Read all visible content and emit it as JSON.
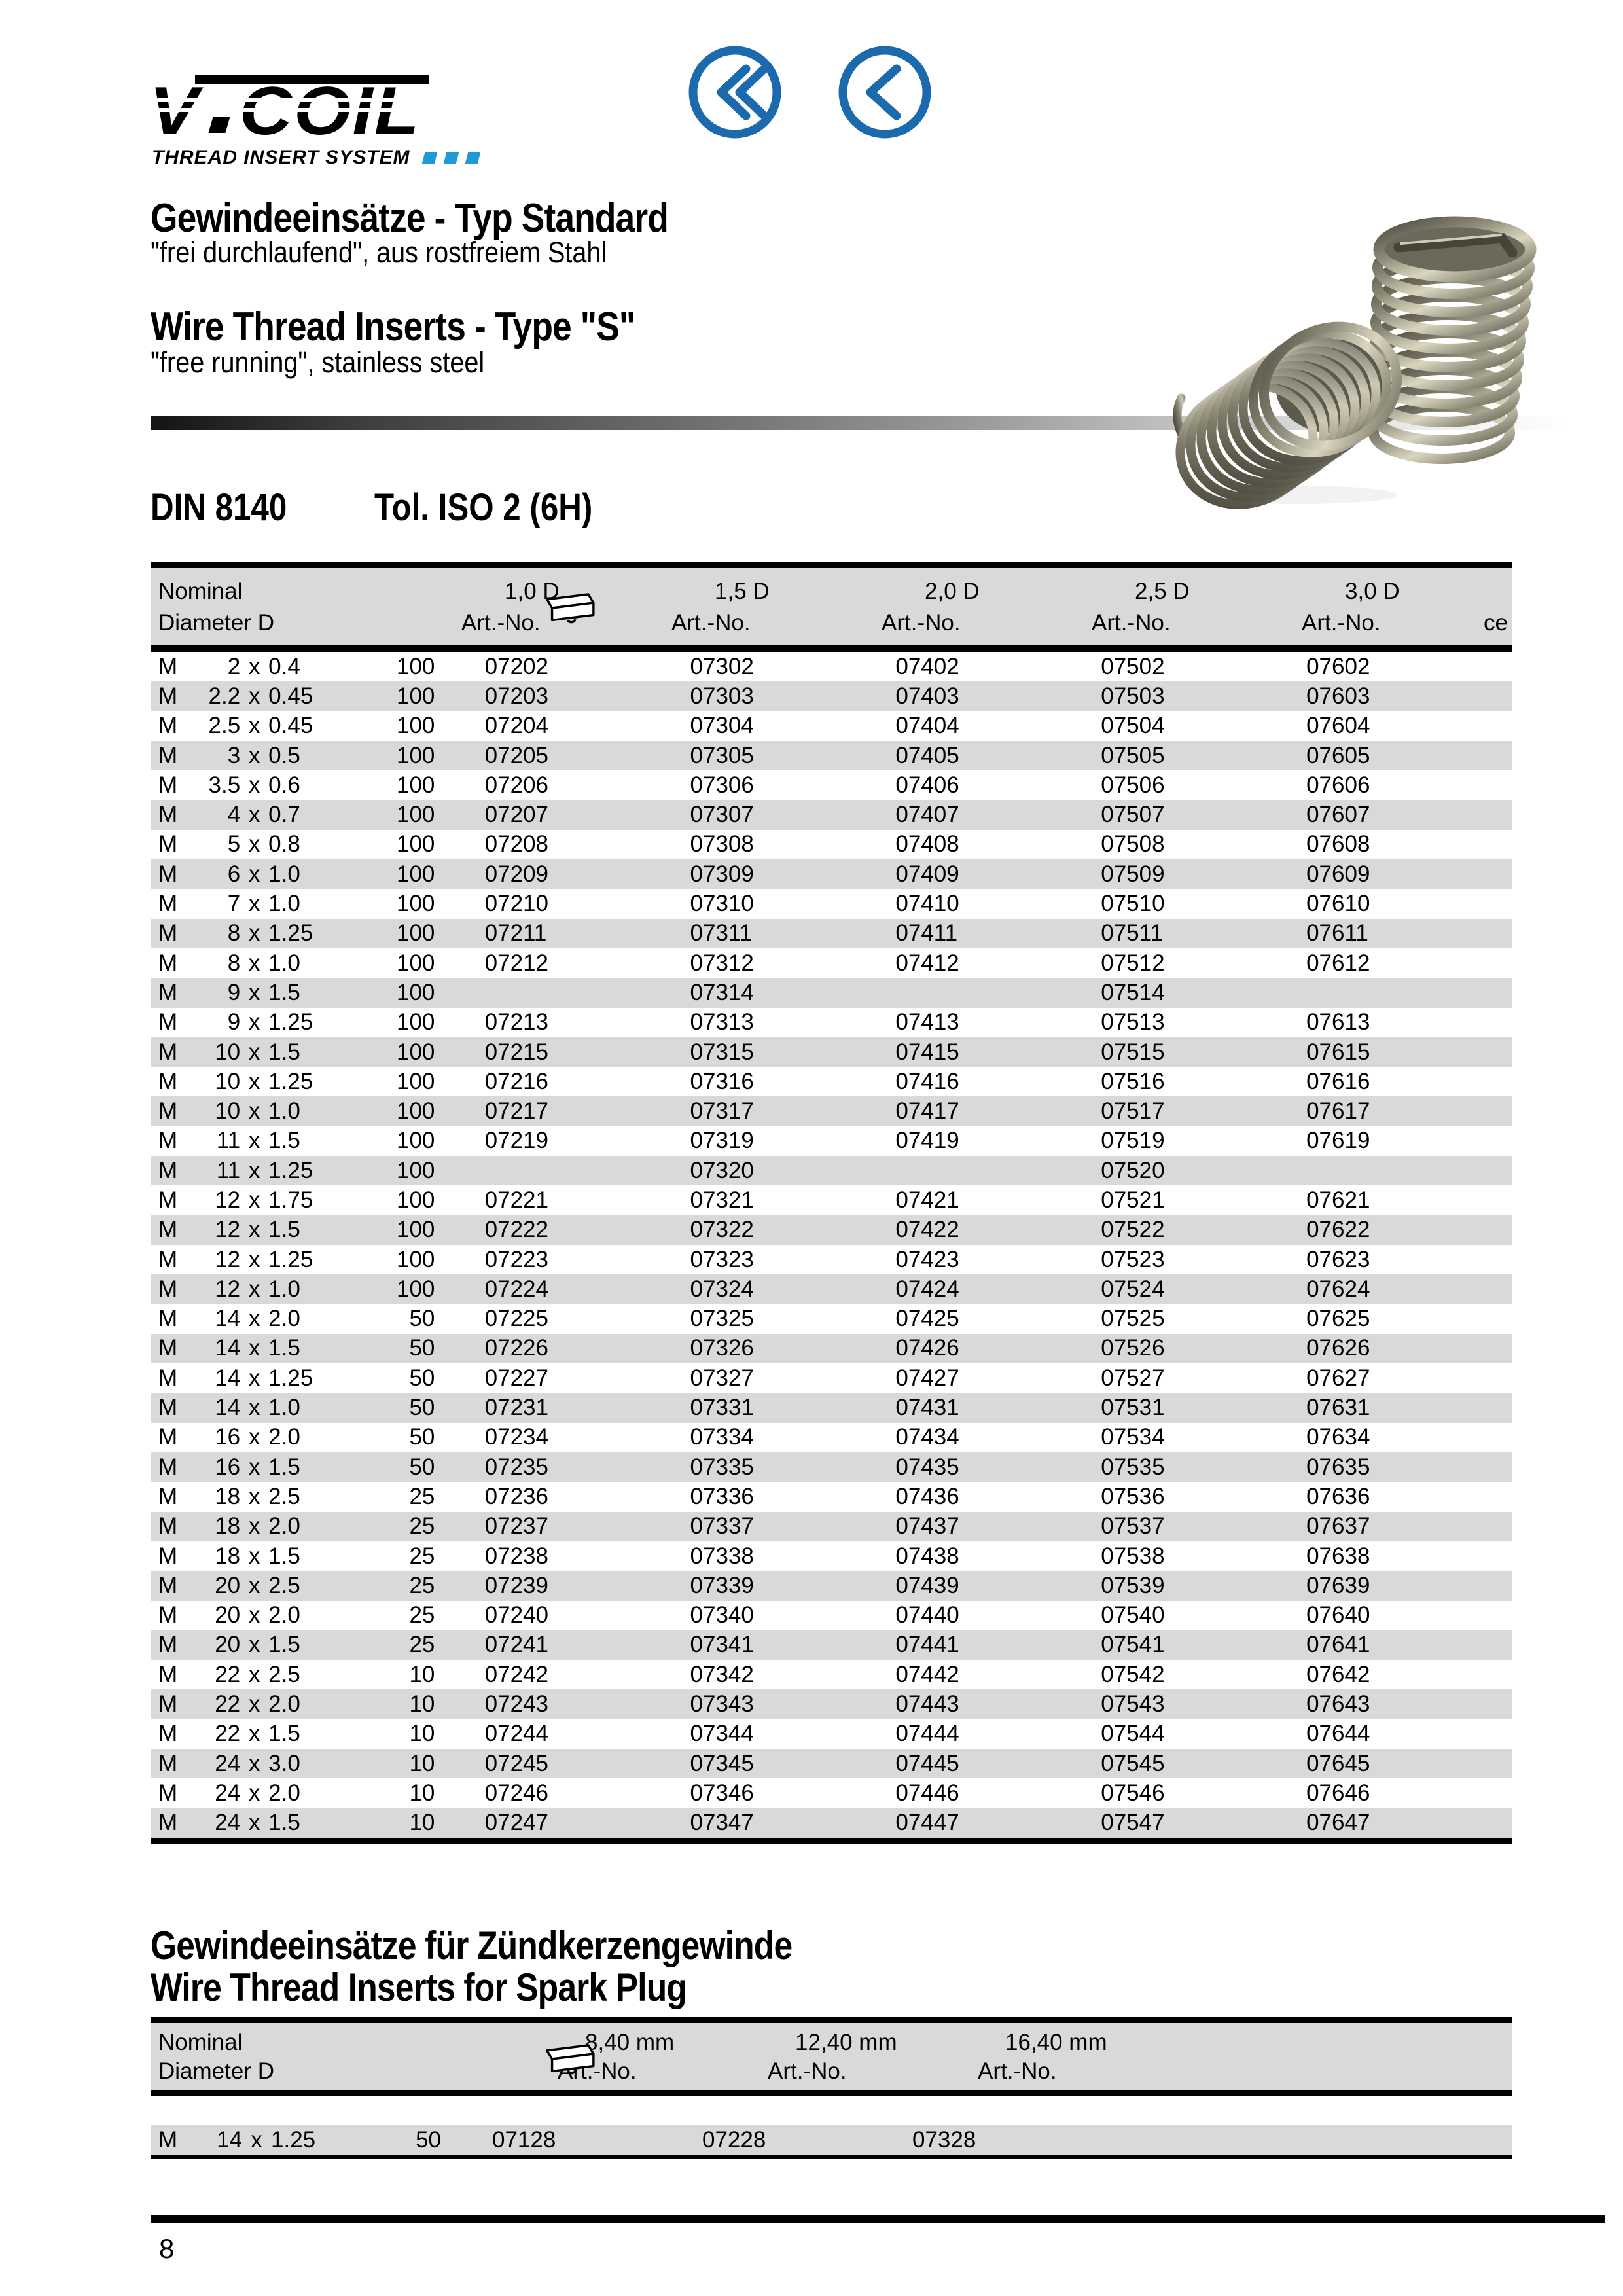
{
  "logo": {
    "brand_v": "V",
    "brand_rest": "COIL",
    "tagline": "THREAD INSERT SYSTEM",
    "accent_blue": "#1e9ad6"
  },
  "nav": {
    "first_page_icon": "chevrons-left-circle",
    "prev_page_icon": "chevron-left-circle",
    "color": "#1a6aad"
  },
  "titles": {
    "de_title": "Gewindeeinsätze - Typ Standard",
    "de_subtitle": "\"frei durchlaufend\", aus rostfreiem Stahl",
    "en_title": "Wire Thread Inserts - Type \"S\"",
    "en_subtitle": "\"free running\", stainless steel"
  },
  "product_image": {
    "description": "two stainless steel wire thread insert coils"
  },
  "din_section": {
    "din": "DIN 8140",
    "tolerance": "Tol. ISO 2 (6H)"
  },
  "standard_table": {
    "header": {
      "nominal": "Nominal",
      "diameter": "Diameter D",
      "pack_icon": "package-icon",
      "art_no": "Art.-No.",
      "sizes": [
        "1,0 D",
        "1,5 D",
        "2,0 D",
        "2,5 D",
        "3,0 D"
      ],
      "right_partial": "ce"
    },
    "m_prefix": "M",
    "x_sep": "x",
    "rows": [
      {
        "d": "2",
        "p": "0.4",
        "qty": "100",
        "arts": [
          "07202",
          "07302",
          "07402",
          "07502",
          "07602"
        ]
      },
      {
        "d": "2.2",
        "p": "0.45",
        "qty": "100",
        "arts": [
          "07203",
          "07303",
          "07403",
          "07503",
          "07603"
        ]
      },
      {
        "d": "2.5",
        "p": "0.45",
        "qty": "100",
        "arts": [
          "07204",
          "07304",
          "07404",
          "07504",
          "07604"
        ]
      },
      {
        "d": "3",
        "p": "0.5",
        "qty": "100",
        "arts": [
          "07205",
          "07305",
          "07405",
          "07505",
          "07605"
        ]
      },
      {
        "d": "3.5",
        "p": "0.6",
        "qty": "100",
        "arts": [
          "07206",
          "07306",
          "07406",
          "07506",
          "07606"
        ]
      },
      {
        "d": "4",
        "p": "0.7",
        "qty": "100",
        "arts": [
          "07207",
          "07307",
          "07407",
          "07507",
          "07607"
        ]
      },
      {
        "d": "5",
        "p": "0.8",
        "qty": "100",
        "arts": [
          "07208",
          "07308",
          "07408",
          "07508",
          "07608"
        ]
      },
      {
        "d": "6",
        "p": "1.0",
        "qty": "100",
        "arts": [
          "07209",
          "07309",
          "07409",
          "07509",
          "07609"
        ]
      },
      {
        "d": "7",
        "p": "1.0",
        "qty": "100",
        "arts": [
          "07210",
          "07310",
          "07410",
          "07510",
          "07610"
        ]
      },
      {
        "d": "8",
        "p": "1.25",
        "qty": "100",
        "arts": [
          "07211",
          "07311",
          "07411",
          "07511",
          "07611"
        ]
      },
      {
        "d": "8",
        "p": "1.0",
        "qty": "100",
        "arts": [
          "07212",
          "07312",
          "07412",
          "07512",
          "07612"
        ]
      },
      {
        "d": "9",
        "p": "1.5",
        "qty": "100",
        "arts": [
          "",
          "07314",
          "",
          "07514",
          ""
        ]
      },
      {
        "d": "9",
        "p": "1.25",
        "qty": "100",
        "arts": [
          "07213",
          "07313",
          "07413",
          "07513",
          "07613"
        ]
      },
      {
        "d": "10",
        "p": "1.5",
        "qty": "100",
        "arts": [
          "07215",
          "07315",
          "07415",
          "07515",
          "07615"
        ]
      },
      {
        "d": "10",
        "p": "1.25",
        "qty": "100",
        "arts": [
          "07216",
          "07316",
          "07416",
          "07516",
          "07616"
        ]
      },
      {
        "d": "10",
        "p": "1.0",
        "qty": "100",
        "arts": [
          "07217",
          "07317",
          "07417",
          "07517",
          "07617"
        ]
      },
      {
        "d": "11",
        "p": "1.5",
        "qty": "100",
        "arts": [
          "07219",
          "07319",
          "07419",
          "07519",
          "07619"
        ]
      },
      {
        "d": "11",
        "p": "1.25",
        "qty": "100",
        "arts": [
          "",
          "07320",
          "",
          "07520",
          ""
        ]
      },
      {
        "d": "12",
        "p": "1.75",
        "qty": "100",
        "arts": [
          "07221",
          "07321",
          "07421",
          "07521",
          "07621"
        ]
      },
      {
        "d": "12",
        "p": "1.5",
        "qty": "100",
        "arts": [
          "07222",
          "07322",
          "07422",
          "07522",
          "07622"
        ]
      },
      {
        "d": "12",
        "p": "1.25",
        "qty": "100",
        "arts": [
          "07223",
          "07323",
          "07423",
          "07523",
          "07623"
        ]
      },
      {
        "d": "12",
        "p": "1.0",
        "qty": "100",
        "arts": [
          "07224",
          "07324",
          "07424",
          "07524",
          "07624"
        ]
      },
      {
        "d": "14",
        "p": "2.0",
        "qty": "50",
        "arts": [
          "07225",
          "07325",
          "07425",
          "07525",
          "07625"
        ]
      },
      {
        "d": "14",
        "p": "1.5",
        "qty": "50",
        "arts": [
          "07226",
          "07326",
          "07426",
          "07526",
          "07626"
        ]
      },
      {
        "d": "14",
        "p": "1.25",
        "qty": "50",
        "arts": [
          "07227",
          "07327",
          "07427",
          "07527",
          "07627"
        ]
      },
      {
        "d": "14",
        "p": "1.0",
        "qty": "50",
        "arts": [
          "07231",
          "07331",
          "07431",
          "07531",
          "07631"
        ]
      },
      {
        "d": "16",
        "p": "2.0",
        "qty": "50",
        "arts": [
          "07234",
          "07334",
          "07434",
          "07534",
          "07634"
        ]
      },
      {
        "d": "16",
        "p": "1.5",
        "qty": "50",
        "arts": [
          "07235",
          "07335",
          "07435",
          "07535",
          "07635"
        ]
      },
      {
        "d": "18",
        "p": "2.5",
        "qty": "25",
        "arts": [
          "07236",
          "07336",
          "07436",
          "07536",
          "07636"
        ]
      },
      {
        "d": "18",
        "p": "2.0",
        "qty": "25",
        "arts": [
          "07237",
          "07337",
          "07437",
          "07537",
          "07637"
        ]
      },
      {
        "d": "18",
        "p": "1.5",
        "qty": "25",
        "arts": [
          "07238",
          "07338",
          "07438",
          "07538",
          "07638"
        ]
      },
      {
        "d": "20",
        "p": "2.5",
        "qty": "25",
        "arts": [
          "07239",
          "07339",
          "07439",
          "07539",
          "07639"
        ]
      },
      {
        "d": "20",
        "p": "2.0",
        "qty": "25",
        "arts": [
          "07240",
          "07340",
          "07440",
          "07540",
          "07640"
        ]
      },
      {
        "d": "20",
        "p": "1.5",
        "qty": "25",
        "arts": [
          "07241",
          "07341",
          "07441",
          "07541",
          "07641"
        ]
      },
      {
        "d": "22",
        "p": "2.5",
        "qty": "10",
        "arts": [
          "07242",
          "07342",
          "07442",
          "07542",
          "07642"
        ]
      },
      {
        "d": "22",
        "p": "2.0",
        "qty": "10",
        "arts": [
          "07243",
          "07343",
          "07443",
          "07543",
          "07643"
        ]
      },
      {
        "d": "22",
        "p": "1.5",
        "qty": "10",
        "arts": [
          "07244",
          "07344",
          "07444",
          "07544",
          "07644"
        ]
      },
      {
        "d": "24",
        "p": "3.0",
        "qty": "10",
        "arts": [
          "07245",
          "07345",
          "07445",
          "07545",
          "07645"
        ]
      },
      {
        "d": "24",
        "p": "2.0",
        "qty": "10",
        "arts": [
          "07246",
          "07346",
          "07446",
          "07546",
          "07646"
        ]
      },
      {
        "d": "24",
        "p": "1.5",
        "qty": "10",
        "arts": [
          "07247",
          "07347",
          "07447",
          "07547",
          "07647"
        ]
      }
    ]
  },
  "spark_section": {
    "heading_de": "Gewindeeinsätze für Zündkerzengewinde",
    "heading_en": "Wire Thread Inserts for Spark Plug",
    "header": {
      "nominal": "Nominal",
      "diameter": "Diameter D",
      "pack_icon": "package-icon",
      "art_no": "Art.-No.",
      "sizes": [
        "8,40 mm",
        "12,40 mm",
        "16,40 mm"
      ]
    },
    "rows": [
      {
        "d": "14",
        "p": "1.25",
        "qty": "50",
        "arts": [
          "07128",
          "07228",
          "07328"
        ]
      }
    ]
  },
  "footer": {
    "page_number": "8"
  }
}
